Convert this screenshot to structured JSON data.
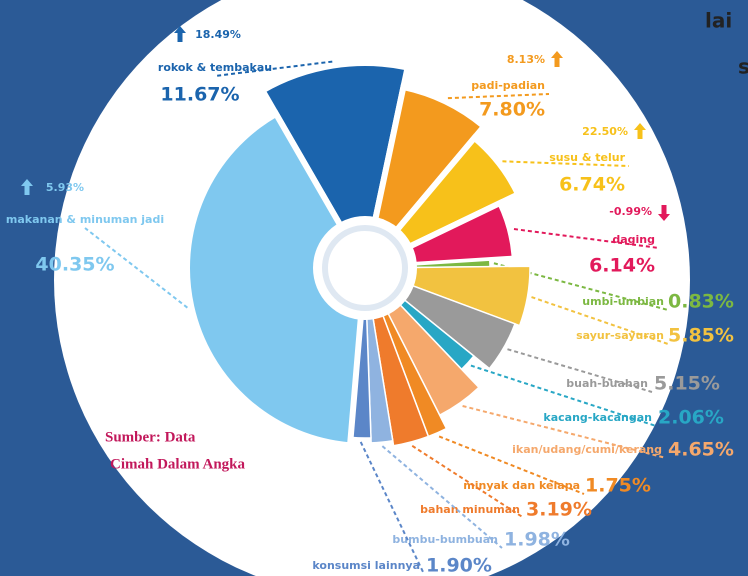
{
  "chart_data": {
    "type": "pie",
    "categories": [
      "rokok & tembakau",
      "padi-padian",
      "susu & telur",
      "daging",
      "umbi-umbian",
      "sayur-sayuran",
      "buah-buahan",
      "kacang-kacangan",
      "ikan/udang/cumi/kerang",
      "minyak dan kelapa",
      "bahan minuman",
      "bumbu-bumbuan",
      "konsumsi lainnya",
      "makanan & minuman jadi"
    ],
    "values": [
      11.67,
      7.8,
      6.74,
      6.14,
      0.83,
      5.85,
      5.15,
      2.06,
      4.65,
      1.75,
      3.19,
      1.98,
      1.9,
      40.35
    ],
    "value_labels": [
      "11.67%",
      "7.80%",
      "6.74%",
      "6.14%",
      "0.83%",
      "5.85%",
      "5.15%",
      "2.06%",
      "4.65%",
      "1.75%",
      "3.19%",
      "1.98%",
      "1.90%",
      "40.35%"
    ],
    "change_values": [
      18.49,
      8.13,
      22.5,
      -0.99,
      null,
      null,
      null,
      null,
      null,
      null,
      null,
      null,
      null,
      5.93
    ],
    "change_labels": [
      "18.49%",
      "8.13%",
      "22.50%",
      "-0.99%",
      null,
      null,
      null,
      null,
      null,
      null,
      null,
      null,
      null,
      "5.93%"
    ],
    "colors": [
      "#1b64ad",
      "#f39a1e",
      "#f7c11a",
      "#e2195b",
      "#7cb842",
      "#f2c240",
      "#9a9a9a",
      "#28a7c5",
      "#f5a86c",
      "#f08a24",
      "#ef7b2c",
      "#8fb3e0",
      "#5b86c8",
      "#7fc8ef"
    ],
    "source": [
      "Sumber: Data",
      "Cimah Dalam Angka"
    ],
    "partial_text": [
      "lai",
      "s"
    ]
  }
}
